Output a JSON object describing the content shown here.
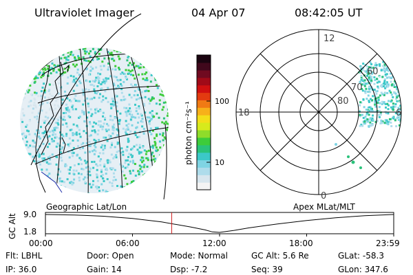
{
  "header": {
    "instrument": "Ultraviolet Imager",
    "date": "04 Apr 07",
    "time": "08:42:05 UT"
  },
  "colorbar": {
    "unit_label": "photon cm⁻²s⁻¹",
    "ticks": [
      "100",
      "10"
    ],
    "colors": [
      "#f4f4f4",
      "#d8e6ee",
      "#aedceb",
      "#7fd4e3",
      "#3cc8c8",
      "#2ac27a",
      "#3dcc3a",
      "#8fdc2a",
      "#d7ea1c",
      "#f3de1a",
      "#f7b01a",
      "#f07a14",
      "#e33b10",
      "#d01010",
      "#a00a18",
      "#700a20",
      "#40081c",
      "#1a0410"
    ]
  },
  "polar_plot": {
    "mlt_labels": [
      "12",
      "18",
      "6",
      "0"
    ],
    "lat_labels": [
      "60",
      "70",
      "80"
    ]
  },
  "timeline": {
    "ylabel": "GC Alt",
    "y_values": [
      "9.0",
      "1.8"
    ],
    "left_caption": "Geographic Lat/Lon",
    "right_caption": "Apex MLat/MLT",
    "time_ticks": [
      "00:00",
      "06:00",
      "12:00",
      "18:00",
      "23:59"
    ],
    "marker_hour": 8.7,
    "altitude_profile": {
      "hours": [
        0,
        2,
        4,
        6,
        8,
        10,
        11,
        11.5,
        12,
        13,
        14,
        16,
        18,
        20,
        22,
        23.98
      ],
      "re": [
        9.0,
        8.8,
        8.3,
        7.4,
        6.0,
        4.0,
        2.8,
        2.0,
        1.8,
        2.6,
        3.6,
        5.2,
        6.6,
        7.7,
        8.5,
        9.0
      ]
    }
  },
  "status": {
    "flt": "Flt: LBHL",
    "ip": "IP: 36.0",
    "door": "Door: Open",
    "gain": "Gain: 14",
    "mode": "Mode: Normal",
    "dsp": "Dsp:    -7.2",
    "gc_alt": "GC Alt: 5.6 Re",
    "seq": "Seq: 39",
    "glat": "GLat: -58.3",
    "glon": "GLon: 347.6"
  }
}
